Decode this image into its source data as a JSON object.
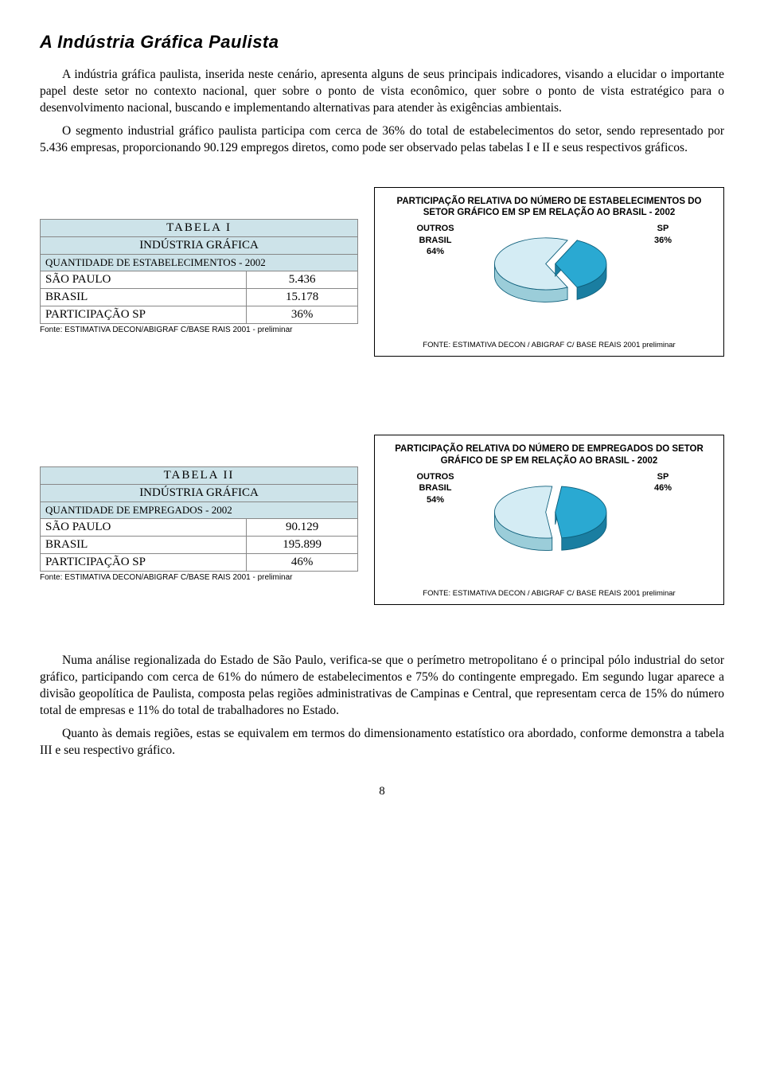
{
  "title": "A Indústria Gráfica Paulista",
  "para1": "A indústria gráfica paulista, inserida neste cenário, apresenta alguns de seus principais indicadores, visando a elucidar o importante papel deste setor no contexto nacional, quer sobre o ponto de vista econômico, quer sobre o ponto de vista estratégico para o desenvolvimento nacional, buscando e implementando alternativas para atender às exigências ambientais.",
  "para2": "O segmento industrial gráfico paulista participa com cerca de 36% do total de estabelecimentos do setor, sendo representado por 5.436 empresas, proporcionando 90.129 empregos diretos, como pode ser observado pelas tabelas I e II e seus respectivos gráficos.",
  "tabela1": {
    "name": "TABELA I",
    "subtitle": "INDÚSTRIA GRÁFICA",
    "desc": "QUANTIDADE DE ESTABELECIMENTOS - 2002",
    "rows": [
      {
        "label": "SÃO PAULO",
        "value": "5.436"
      },
      {
        "label": "BRASIL",
        "value": "15.178"
      },
      {
        "label": "PARTICIPAÇÃO SP",
        "value": "36%"
      }
    ],
    "fonte": "Fonte: ESTIMATIVA DECON/ABIGRAF C/BASE RAIS 2001 - preliminar"
  },
  "chart1": {
    "title": "PARTICIPAÇÃO RELATIVA DO NÚMERO DE ESTABELECIMENTOS DO SETOR GRÁFICO EM SP EM RELAÇÃO AO BRASIL - 2002",
    "left_label": "OUTROS BRASIL",
    "left_pct": "64%",
    "right_label": "SP",
    "right_pct": "36%",
    "slice_sp": 36,
    "color_outros_top": "#d4ecf4",
    "color_outros_side": "#9bcdd9",
    "color_sp_top": "#2aa9d2",
    "color_sp_side": "#1a7ea1",
    "stroke": "#0d5e7a",
    "fonte": "FONTE: ESTIMATIVA DECON / ABIGRAF C/ BASE REAIS 2001 preliminar"
  },
  "tabela2": {
    "name": "TABELA II",
    "subtitle": "INDÚSTRIA GRÁFICA",
    "desc": "QUANTIDADE DE EMPREGADOS - 2002",
    "rows": [
      {
        "label": "SÃO PAULO",
        "value": "90.129"
      },
      {
        "label": "BRASIL",
        "value": "195.899"
      },
      {
        "label": "PARTICIPAÇÃO SP",
        "value": "46%"
      }
    ],
    "fonte": "Fonte: ESTIMATIVA DECON/ABIGRAF C/BASE RAIS 2001 - preliminar"
  },
  "chart2": {
    "title": "PARTICIPAÇÃO RELATIVA DO NÚMERO DE EMPREGADOS DO SETOR GRÁFICO DE SP EM RELAÇÃO AO BRASIL - 2002",
    "left_label": "OUTROS BRASIL",
    "left_pct": "54%",
    "right_label": "SP",
    "right_pct": "46%",
    "slice_sp": 46,
    "color_outros_top": "#d4ecf4",
    "color_outros_side": "#9bcdd9",
    "color_sp_top": "#2aa9d2",
    "color_sp_side": "#1a7ea1",
    "stroke": "#0d5e7a",
    "fonte": "FONTE: ESTIMATIVA DECON / ABIGRAF C/ BASE REAIS 2001 preliminar"
  },
  "para3": "Numa análise regionalizada do Estado de São Paulo, verifica-se que o perímetro metropolitano é o principal pólo industrial do setor gráfico, participando com cerca de 61% do número de estabelecimentos e 75% do contingente empregado. Em segundo lugar aparece a divisão geopolítica de Paulista, composta pelas regiões administrativas de Campinas e Central, que representam cerca de 15% do número total de empresas e 11% do total de trabalhadores no Estado.",
  "para4": "Quanto às demais regiões, estas se equivalem em termos do dimensionamento estatístico ora abordado, conforme demonstra a tabela III e seu respectivo gráfico.",
  "page_number": "8"
}
